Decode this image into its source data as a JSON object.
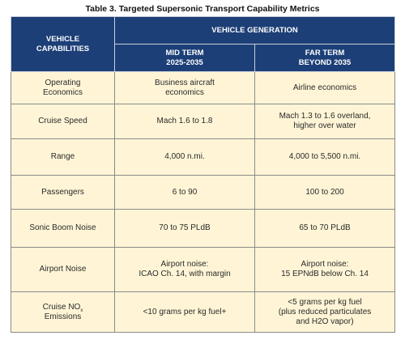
{
  "caption": "Table 3. Targeted Supersonic Transport Capability Metrics",
  "header": {
    "vehicle_capabilities": [
      "VEHICLE",
      "CAPABILITIES"
    ],
    "vehicle_generation": "VEHICLE GENERATION",
    "mid_term": [
      "MID TERM",
      "2025-2035"
    ],
    "far_term": [
      "FAR TERM",
      "BEYOND 2035"
    ]
  },
  "rows": [
    {
      "capability": [
        "Operating",
        "Economics"
      ],
      "mid": [
        "Business aircraft",
        "economics"
      ],
      "far": [
        "Airline economics"
      ]
    },
    {
      "capability": [
        "Cruise Speed"
      ],
      "mid": [
        "Mach 1.6 to 1.8"
      ],
      "far": [
        "Mach 1.3 to 1.6 overland,",
        "higher over water"
      ]
    },
    {
      "capability": [
        "Range"
      ],
      "mid": [
        "4,000 n.mi."
      ],
      "far": [
        "4,000 to 5,500 n.mi."
      ]
    },
    {
      "capability": [
        "Passengers"
      ],
      "mid": [
        "6 to 90"
      ],
      "far": [
        "100 to 200"
      ]
    },
    {
      "capability": [
        "Sonic Boom Noise"
      ],
      "mid": [
        "70 to 75 PLdB"
      ],
      "far": [
        "65 to 70 PLdB"
      ]
    },
    {
      "capability": [
        "Airport Noise"
      ],
      "mid": [
        "Airport noise:",
        "ICAO Ch. 14, with margin"
      ],
      "far": [
        "Airport noise:",
        "15 EPNdB below Ch. 14"
      ]
    },
    {
      "capability_nox": {
        "prefix": "Cruise NO",
        "subscript": "x",
        "line2": "Emissions"
      },
      "mid": [
        "<10 grams per kg fuel+"
      ],
      "far": [
        "<5 grams per kg fuel",
        "(plus reduced particulates",
        "and H2O vapor)"
      ]
    }
  ]
}
